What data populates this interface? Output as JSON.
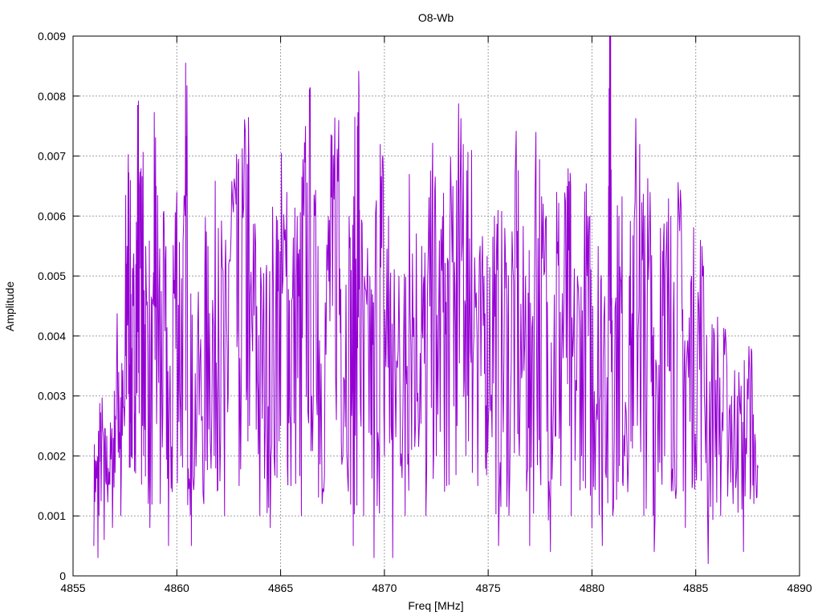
{
  "chart_data": {
    "type": "line",
    "title": "O8-Wb",
    "xlabel": "Freq [MHz]",
    "ylabel": "Amplitude",
    "xlim": [
      4855,
      4890
    ],
    "ylim": [
      0,
      0.009
    ],
    "xticks": [
      4855,
      4860,
      4865,
      4870,
      4875,
      4880,
      4885,
      4890
    ],
    "yticks": [
      0,
      0.001,
      0.002,
      0.003,
      0.004,
      0.005,
      0.006,
      0.007,
      0.008,
      0.009
    ],
    "xtick_labels": [
      "4855",
      "4860",
      "4865",
      "4870",
      "4875",
      "4880",
      "4885",
      "4890"
    ],
    "ytick_labels": [
      "0",
      "0.001",
      "0.002",
      "0.003",
      "0.004",
      "0.005",
      "0.006",
      "0.007",
      "0.008",
      "0.009"
    ],
    "grid": true,
    "series": [
      {
        "color": "#9400d3",
        "x_range": [
          4856.0,
          4888.0
        ],
        "notable_points": [
          [
            4856.0,
            0.0005
          ],
          [
            4856.1,
            0.0015
          ],
          [
            4856.2,
            0.0003
          ],
          [
            4856.3,
            0.0024
          ],
          [
            4856.5,
            0.0006
          ],
          [
            4856.7,
            0.0018
          ],
          [
            4856.9,
            0.0008
          ],
          [
            4857.0,
            0.0025
          ],
          [
            4857.2,
            0.0034
          ],
          [
            4857.3,
            0.001
          ],
          [
            4857.5,
            0.003
          ],
          [
            4857.6,
            0.0055
          ],
          [
            4857.7,
            0.0058
          ],
          [
            4857.8,
            0.002
          ],
          [
            4857.9,
            0.0045
          ],
          [
            4858.0,
            0.003
          ],
          [
            4858.1,
            0.0063
          ],
          [
            4858.2,
            0.0065
          ],
          [
            4858.4,
            0.002
          ],
          [
            4858.5,
            0.0055
          ],
          [
            4858.7,
            0.0008
          ],
          [
            4858.9,
            0.0045
          ],
          [
            4859.0,
            0.0065
          ],
          [
            4859.2,
            0.0012
          ],
          [
            4859.4,
            0.0055
          ],
          [
            4859.6,
            0.0005
          ],
          [
            4859.8,
            0.003
          ],
          [
            4860.0,
            0.0064
          ],
          [
            4860.2,
            0.002
          ],
          [
            4860.4,
            0.006
          ],
          [
            4860.5,
            0.0069
          ],
          [
            4860.7,
            0.0005
          ],
          [
            4861.0,
            0.004
          ],
          [
            4861.3,
            0.0012
          ],
          [
            4861.5,
            0.0055
          ],
          [
            4861.8,
            0.002
          ],
          [
            4862.0,
            0.0058
          ],
          [
            4862.3,
            0.001
          ],
          [
            4862.5,
            0.0052
          ],
          [
            4862.8,
            0.0065
          ],
          [
            4863.0,
            0.0015
          ],
          [
            4863.3,
            0.0074
          ],
          [
            4863.5,
            0.0025
          ],
          [
            4863.8,
            0.0055
          ],
          [
            4864.0,
            0.001
          ],
          [
            4864.3,
            0.005
          ],
          [
            4864.5,
            0.0008
          ],
          [
            4864.8,
            0.006
          ],
          [
            4865.0,
            0.0025
          ],
          [
            4865.3,
            0.0064
          ],
          [
            4865.5,
            0.0015
          ],
          [
            4865.8,
            0.006
          ],
          [
            4866.0,
            0.001
          ],
          [
            4866.2,
            0.0075
          ],
          [
            4866.5,
            0.003
          ],
          [
            4866.8,
            0.0055
          ],
          [
            4867.0,
            0.0012
          ],
          [
            4867.3,
            0.006
          ],
          [
            4867.5,
            0.0045
          ],
          [
            4867.8,
            0.0076
          ],
          [
            4868.0,
            0.002
          ],
          [
            4868.3,
            0.006
          ],
          [
            4868.5,
            0.0005
          ],
          [
            4868.7,
            0.0075
          ],
          [
            4868.8,
            0.0061
          ],
          [
            4869.0,
            0.001
          ],
          [
            4869.3,
            0.005
          ],
          [
            4869.5,
            0.0003
          ],
          [
            4869.8,
            0.0072
          ],
          [
            4870.0,
            0.002
          ],
          [
            4870.2,
            0.006
          ],
          [
            4870.4,
            0.0003
          ],
          [
            4870.7,
            0.005
          ],
          [
            4871.0,
            0.001
          ],
          [
            4871.2,
            0.0067
          ],
          [
            4871.5,
            0.0025
          ],
          [
            4871.8,
            0.0055
          ],
          [
            4872.0,
            0.001
          ],
          [
            4872.3,
            0.0065
          ],
          [
            4872.5,
            0.002
          ],
          [
            4872.8,
            0.006
          ],
          [
            4873.0,
            0.0015
          ],
          [
            4873.3,
            0.0065
          ],
          [
            4873.5,
            0.0025
          ],
          [
            4873.8,
            0.0072
          ],
          [
            4874.0,
            0.003
          ],
          [
            4874.2,
            0.0071
          ],
          [
            4874.5,
            0.0015
          ],
          [
            4874.8,
            0.005
          ],
          [
            4875.0,
            0.0025
          ],
          [
            4875.3,
            0.006
          ],
          [
            4875.5,
            0.0005
          ],
          [
            4875.8,
            0.0058
          ],
          [
            4876.0,
            0.001
          ],
          [
            4876.3,
            0.0067
          ],
          [
            4876.5,
            0.002
          ],
          [
            4876.8,
            0.005
          ],
          [
            4877.0,
            0.0005
          ],
          [
            4877.3,
            0.0074
          ],
          [
            4877.5,
            0.002
          ],
          [
            4877.8,
            0.006
          ],
          [
            4878.0,
            0.0004
          ],
          [
            4878.3,
            0.0064
          ],
          [
            4878.5,
            0.0015
          ],
          [
            4878.8,
            0.0065
          ],
          [
            4879.0,
            0.001
          ],
          [
            4879.3,
            0.005
          ],
          [
            4879.5,
            0.002
          ],
          [
            4879.8,
            0.006
          ],
          [
            4880.0,
            0.0008
          ],
          [
            4880.3,
            0.0055
          ],
          [
            4880.5,
            0.0005
          ],
          [
            4880.8,
            0.0065
          ],
          [
            4880.9,
            0.009
          ],
          [
            4881.0,
            0.001
          ],
          [
            4881.3,
            0.006
          ],
          [
            4881.5,
            0.0015
          ],
          [
            4881.8,
            0.005
          ],
          [
            4882.0,
            0.0025
          ],
          [
            4882.3,
            0.0072
          ],
          [
            4882.5,
            0.001
          ],
          [
            4882.8,
            0.0064
          ],
          [
            4883.0,
            0.0004
          ],
          [
            4883.3,
            0.0058
          ],
          [
            4883.5,
            0.002
          ],
          [
            4883.8,
            0.006
          ],
          [
            4884.0,
            0.0015
          ],
          [
            4884.3,
            0.0061
          ],
          [
            4884.5,
            0.0008
          ],
          [
            4884.8,
            0.005
          ],
          [
            4885.0,
            0.002
          ],
          [
            4885.3,
            0.0055
          ],
          [
            4885.6,
            0.0002
          ],
          [
            4885.9,
            0.004
          ],
          [
            4886.2,
            0.001
          ],
          [
            4886.5,
            0.0035
          ],
          [
            4886.8,
            0.0012
          ],
          [
            4887.0,
            0.003
          ],
          [
            4887.3,
            0.0004
          ],
          [
            4887.6,
            0.0034
          ],
          [
            4887.8,
            0.0012
          ],
          [
            4888.0,
            0.0018
          ]
        ]
      }
    ]
  }
}
